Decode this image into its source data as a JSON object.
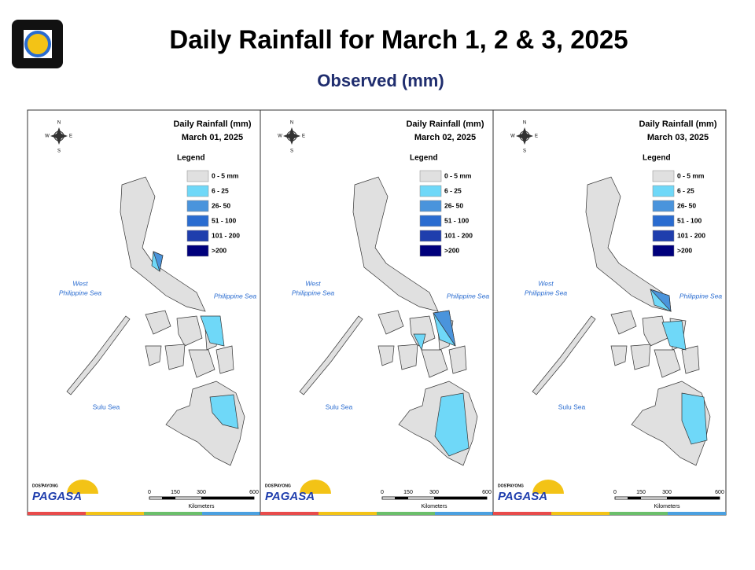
{
  "header": {
    "title": "Daily Rainfall for March 1, 2 & 3, 2025",
    "subtitle": "Observed (mm)",
    "logo_text": "PAGASA"
  },
  "panels": [
    {
      "heading": "Daily Rainfall (mm)",
      "date": "March 01, 2025"
    },
    {
      "heading": "Daily Rainfall (mm)",
      "date": "March 02, 2025"
    },
    {
      "heading": "Daily Rainfall (mm)",
      "date": "March 03, 2025"
    }
  ],
  "legend": {
    "title": "Legend",
    "items": [
      {
        "label": "0 - 5 mm",
        "color": "#e0e0e0"
      },
      {
        "label": "6 - 25",
        "color": "#6fd8f8"
      },
      {
        "label": "26- 50",
        "color": "#4a94dc"
      },
      {
        "label": "51 - 100",
        "color": "#2a6cd0"
      },
      {
        "label": "101 - 200",
        "color": "#1f3ead"
      },
      {
        "label": ">200",
        "color": "#00007c"
      }
    ]
  },
  "compass": {
    "north": "N",
    "east": "E",
    "south": "S",
    "west": "W"
  },
  "sea_labels": {
    "west_philippine_sea": [
      "West",
      "Philippine Sea"
    ],
    "philippine_sea": "Philippine Sea",
    "sulu_sea": "Sulu Sea"
  },
  "scale_bar": {
    "ticks": [
      "0",
      "150",
      "300",
      "600"
    ],
    "unit": "Kilometers"
  },
  "logo": {
    "agency": "DOST",
    "tagline": "PAYONG",
    "name": "PAGASA"
  }
}
